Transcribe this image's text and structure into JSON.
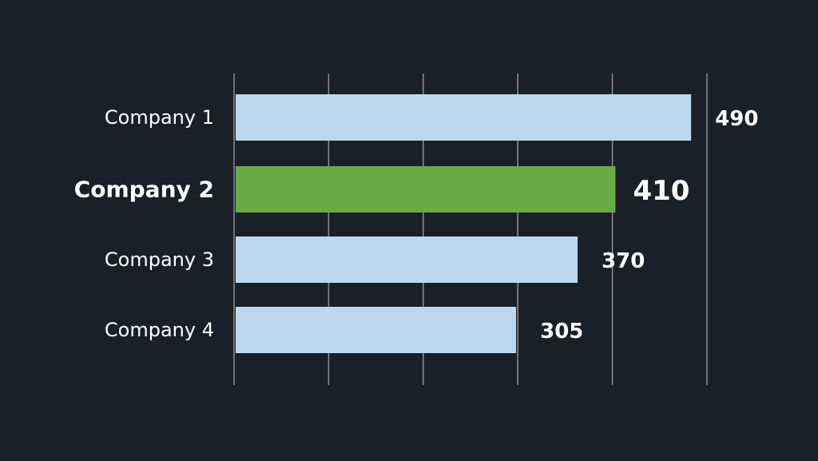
{
  "chart_data": {
    "type": "bar",
    "orientation": "horizontal",
    "categories": [
      "Company 1",
      "Company 2",
      "Company 3",
      "Company 4"
    ],
    "values": [
      490,
      410,
      370,
      305
    ],
    "data_labels": [
      "490",
      "410",
      "370",
      "305"
    ],
    "highlighted_category": "Company 2",
    "xlim": [
      0,
      500
    ],
    "x_gridlines": [
      0,
      100,
      200,
      300,
      400,
      500
    ],
    "grid": true,
    "legend": "none",
    "title": "",
    "xlabel": "",
    "ylabel": ""
  },
  "colors": {
    "background": "#1a2027",
    "bar": "#bdd8ee",
    "bar_highlight": "#6aaa44",
    "gridline": "#8a9096",
    "label_text": "#ffffff"
  }
}
